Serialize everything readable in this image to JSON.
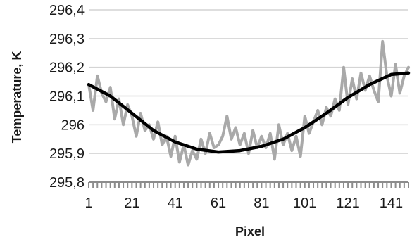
{
  "chart_data": {
    "type": "line",
    "title": "",
    "xlabel": "Pixel",
    "ylabel": "Temperature, K",
    "xlim": [
      1,
      149
    ],
    "ylim": [
      295.8,
      296.4
    ],
    "x_ticks": [
      1,
      21,
      41,
      61,
      81,
      101,
      121,
      141
    ],
    "x_tick_labels": [
      "1",
      "21",
      "41",
      "61",
      "81",
      "101",
      "121",
      "141"
    ],
    "y_ticks": [
      295.8,
      295.9,
      296.0,
      296.1,
      296.2,
      296.3,
      296.4
    ],
    "y_tick_labels": [
      "295,8",
      "295,9",
      "296",
      "296,1",
      "296,2",
      "296,3",
      "296,4"
    ],
    "grid": "horizontal",
    "legend": "none",
    "series": [
      {
        "color": "#a9a9a9",
        "x": [
          1,
          3,
          5,
          7,
          9,
          11,
          13,
          15,
          17,
          19,
          21,
          23,
          25,
          27,
          29,
          31,
          33,
          35,
          37,
          39,
          41,
          43,
          45,
          47,
          49,
          51,
          53,
          55,
          57,
          59,
          61,
          63,
          65,
          67,
          69,
          71,
          73,
          75,
          77,
          79,
          81,
          83,
          85,
          87,
          89,
          91,
          93,
          95,
          97,
          99,
          101,
          103,
          105,
          107,
          109,
          111,
          113,
          115,
          117,
          119,
          121,
          123,
          125,
          127,
          129,
          131,
          133,
          135,
          137,
          139,
          141,
          143,
          145,
          147,
          149
        ],
        "y": [
          296.14,
          296.05,
          296.17,
          296.11,
          296.08,
          296.13,
          296.02,
          296.09,
          296.0,
          296.07,
          296.03,
          295.96,
          296.04,
          295.98,
          296.0,
          295.95,
          296.01,
          295.93,
          295.96,
          295.89,
          295.96,
          295.87,
          295.93,
          295.86,
          295.91,
          295.88,
          295.95,
          295.9,
          295.97,
          295.92,
          295.93,
          295.96,
          296.03,
          295.95,
          295.99,
          295.93,
          295.97,
          295.9,
          295.98,
          295.92,
          295.96,
          295.92,
          295.97,
          295.88,
          296.0,
          295.93,
          295.97,
          295.91,
          295.96,
          295.89,
          296.03,
          295.97,
          296.01,
          296.05,
          296.0,
          296.06,
          296.03,
          296.09,
          296.05,
          296.2,
          296.07,
          296.16,
          296.09,
          296.18,
          296.12,
          296.17,
          296.12,
          296.08,
          296.29,
          296.17,
          296.1,
          296.21,
          296.11,
          296.17,
          296.2
        ]
      },
      {
        "color": "#000000",
        "x": [
          1,
          11,
          21,
          31,
          41,
          51,
          61,
          71,
          81,
          91,
          101,
          111,
          121,
          131,
          141,
          149
        ],
        "y": [
          296.14,
          296.1,
          296.04,
          295.98,
          295.94,
          295.915,
          295.905,
          295.91,
          295.925,
          295.95,
          295.99,
          296.04,
          296.095,
          296.14,
          296.175,
          296.18
        ]
      }
    ]
  }
}
